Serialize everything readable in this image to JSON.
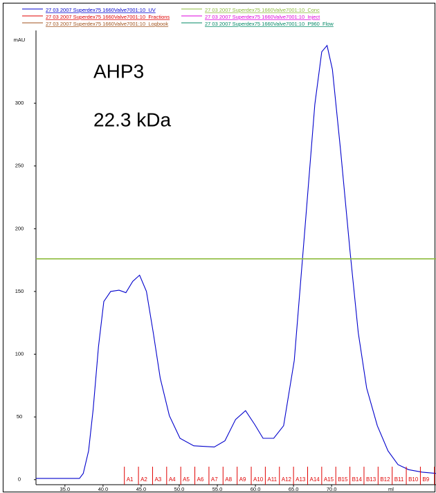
{
  "chart_data": {
    "type": "line",
    "annotations": [
      "AHP3",
      "22.3 kDa"
    ],
    "y_label": "mAU",
    "x_label": "ml",
    "xlim": [
      31.2,
      83.7
    ],
    "ylim": [
      -4,
      358
    ],
    "xticks": [
      {
        "value": 35,
        "label": "35.0"
      },
      {
        "value": 40,
        "label": "40.0"
      },
      {
        "value": 45,
        "label": "45.0"
      },
      {
        "value": 50,
        "label": "50.0"
      },
      {
        "value": 55,
        "label": "55.0"
      },
      {
        "value": 60,
        "label": "60.0"
      },
      {
        "value": 65,
        "label": "65.0"
      },
      {
        "value": 70,
        "label": "70.0"
      }
    ],
    "yticks": [
      0,
      50,
      100,
      150,
      200,
      250,
      300
    ],
    "series": [
      {
        "name": "27 03 2007 Superdex75 1660Valve7001:10_UV",
        "color": "#0000cc",
        "x": [
          31.2,
          36.9,
          37.4,
          38.1,
          38.7,
          39.4,
          40.1,
          41.0,
          42.1,
          43.0,
          43.9,
          44.8,
          45.7,
          46.6,
          47.5,
          48.7,
          50.1,
          51.9,
          54.6,
          56.0,
          57.4,
          58.7,
          59.9,
          61.0,
          62.4,
          63.7,
          65.1,
          66.5,
          67.8,
          68.7,
          69.4,
          70.1,
          71.2,
          72.4,
          73.5,
          74.6,
          76.0,
          77.4,
          78.7,
          80.1,
          81.9,
          83.7
        ],
        "values": [
          1,
          1,
          5,
          23,
          56,
          106,
          142,
          150,
          151,
          149,
          158,
          163,
          150,
          117,
          81,
          51,
          33,
          27,
          26,
          31,
          48,
          55,
          44,
          33,
          33,
          43,
          95,
          200,
          299,
          341,
          346,
          327,
          261,
          183,
          117,
          73,
          43,
          23,
          12,
          8,
          6,
          5
        ]
      },
      {
        "name": "27 03 2007 Superdex75 1660Valve7001:10_Conc",
        "color": "#8dbb3c",
        "x": [
          31.2,
          83.7
        ],
        "values": [
          176,
          176
        ]
      },
      {
        "name": "27 03 2007 Superdex75 1660Valve7001:10_Fractions",
        "color": "#e00000",
        "x": [
          42.8,
          44.65,
          46.5,
          48.35,
          50.2,
          52.05,
          53.9,
          55.75,
          57.6,
          59.45,
          61.3,
          63.15,
          65.0,
          66.85,
          68.7,
          70.55,
          72.4,
          74.25,
          76.1,
          77.95,
          79.8,
          81.65,
          83.5
        ],
        "labels": [
          "A1",
          "A2",
          "A3",
          "A4",
          "A5",
          "A6",
          "A7",
          "A8",
          "A9",
          "A10",
          "A11",
          "A12",
          "A13",
          "A14",
          "A15",
          "B15",
          "B14",
          "B13",
          "B12",
          "B11",
          "B10",
          "B9",
          null
        ]
      },
      {
        "name": "27 03 2007 Superdex75 1660Valve7001:10_Inject",
        "color": "#dd00dd"
      },
      {
        "name": "27 03 2007 Superdex75 1660Valve7001:10_Logbook",
        "color": "#a0521c"
      },
      {
        "name": "27 03 2007 Superdex75 1660Valve7001:10_P960_Flow",
        "color": "#008866"
      }
    ]
  }
}
